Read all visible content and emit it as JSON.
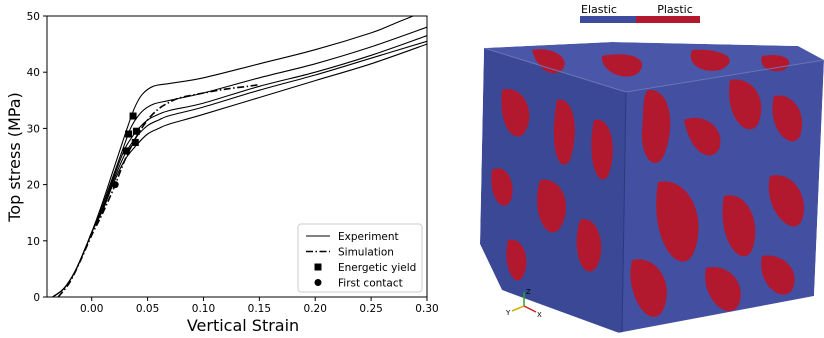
{
  "chart_data": {
    "type": "line",
    "title": "",
    "xlabel": "Vertical Strain",
    "ylabel": "Top stress (MPa)",
    "xlim": [
      -0.04,
      0.3
    ],
    "ylim": [
      0,
      50
    ],
    "xticks": [
      "0.00",
      "0.05",
      "0.10",
      "0.15",
      "0.20",
      "0.25",
      "0.30"
    ],
    "xtick_values": [
      0.0,
      0.05,
      0.1,
      0.15,
      0.2,
      0.25,
      0.3
    ],
    "yticks": [
      "0",
      "10",
      "20",
      "30",
      "40",
      "50"
    ],
    "ytick_values": [
      0,
      10,
      20,
      30,
      40,
      50
    ],
    "grid": false,
    "legend_position": "bottom-right",
    "legend": [
      {
        "label": "Experiment",
        "style": "solid-line"
      },
      {
        "label": "Simulation",
        "style": "dash-dot-line"
      },
      {
        "label": "Energetic yield",
        "style": "square-marker"
      },
      {
        "label": "First contact",
        "style": "circle-marker"
      }
    ],
    "series": [
      {
        "kind": "experiment",
        "x": [
          -0.035,
          -0.025,
          -0.015,
          -0.005,
          0.0,
          0.01,
          0.02,
          0.03,
          0.038,
          0.045,
          0.055,
          0.07,
          0.1,
          0.15,
          0.2,
          0.25,
          0.275,
          0.3
        ],
        "y": [
          0,
          1.5,
          4.5,
          9,
          11.5,
          17,
          23,
          29,
          33.5,
          36,
          37.5,
          38,
          39,
          41.5,
          44,
          47,
          49,
          51
        ]
      },
      {
        "kind": "experiment",
        "x": [
          -0.035,
          -0.025,
          -0.015,
          -0.005,
          0.0,
          0.01,
          0.02,
          0.03,
          0.036,
          0.045,
          0.055,
          0.07,
          0.1,
          0.15,
          0.2,
          0.25,
          0.3
        ],
        "y": [
          0,
          1.5,
          4.5,
          9,
          11.5,
          16.5,
          22,
          27.5,
          30.5,
          33,
          34.3,
          35,
          36.3,
          39,
          41.5,
          44.5,
          48
        ]
      },
      {
        "kind": "experiment",
        "x": [
          -0.035,
          -0.025,
          -0.015,
          -0.005,
          0.0,
          0.01,
          0.02,
          0.03,
          0.04,
          0.05,
          0.06,
          0.07,
          0.1,
          0.15,
          0.2,
          0.25,
          0.3
        ],
        "y": [
          0,
          1.5,
          4.5,
          9,
          11.5,
          16,
          21.5,
          26.5,
          29.5,
          31.5,
          32.5,
          33.2,
          34.5,
          37.5,
          40,
          43,
          46.5
        ]
      },
      {
        "kind": "experiment",
        "x": [
          -0.035,
          -0.025,
          -0.015,
          -0.005,
          0.0,
          0.01,
          0.02,
          0.03,
          0.04,
          0.05,
          0.06,
          0.07,
          0.1,
          0.15,
          0.2,
          0.25,
          0.3
        ],
        "y": [
          0,
          1.5,
          4.5,
          9,
          11.5,
          15.8,
          21,
          25.5,
          28.5,
          30.5,
          31.5,
          32.3,
          33.8,
          36.8,
          39.5,
          42.5,
          45.5
        ]
      },
      {
        "kind": "experiment",
        "x": [
          -0.035,
          -0.025,
          -0.015,
          -0.005,
          0.0,
          0.01,
          0.02,
          0.03,
          0.04,
          0.05,
          0.06,
          0.07,
          0.1,
          0.15,
          0.2,
          0.25,
          0.3
        ],
        "y": [
          0,
          1.5,
          4.5,
          9,
          11.5,
          15.5,
          20.5,
          24.5,
          27,
          29,
          30,
          30.8,
          32.5,
          35.5,
          38.5,
          41.5,
          45
        ]
      },
      {
        "kind": "simulation",
        "x": [
          -0.03,
          -0.02,
          -0.01,
          0.0,
          0.01,
          0.02,
          0.03,
          0.04,
          0.05,
          0.06,
          0.07,
          0.08,
          0.1,
          0.12,
          0.14,
          0.15
        ],
        "y": [
          0,
          2.5,
          6.5,
          11,
          15,
          19.5,
          24.5,
          28.5,
          31.5,
          33.5,
          34.7,
          35.5,
          36.3,
          37,
          37.5,
          37.8
        ]
      }
    ],
    "energetic_yield_points": [
      {
        "x": 0.037,
        "y": 32.2
      },
      {
        "x": 0.033,
        "y": 29.0
      },
      {
        "x": 0.04,
        "y": 29.5
      },
      {
        "x": 0.031,
        "y": 26.0
      },
      {
        "x": 0.039,
        "y": 27.5
      }
    ],
    "first_contact_points": [
      {
        "x": 0.021,
        "y": 20.0
      }
    ]
  },
  "render": {
    "legend_labels": [
      "Elastic",
      "Plastic"
    ],
    "colors": {
      "elastic": "#3f4c9d",
      "plastic": "#b3192e"
    },
    "triad_axes": [
      "Z",
      "Y",
      "X"
    ]
  }
}
